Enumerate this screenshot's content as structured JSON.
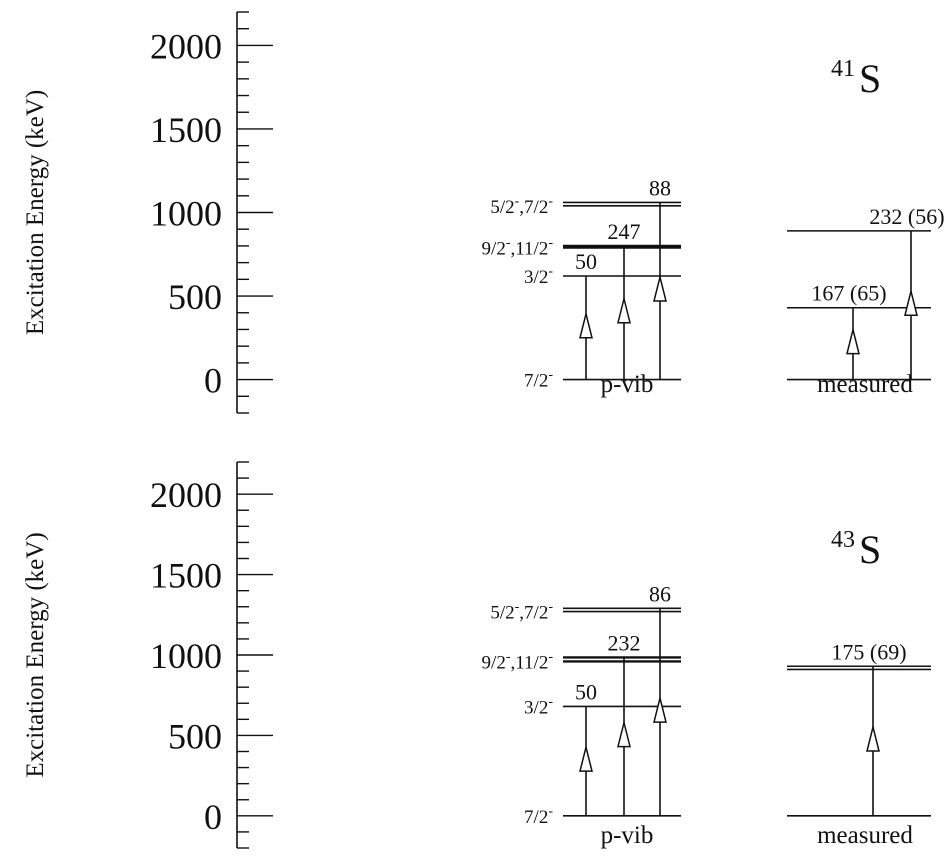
{
  "axis": {
    "ylabel": "Excitation Energy (keV)",
    "ticks": [
      0,
      500,
      1000,
      1500,
      2000
    ],
    "range": [
      -200,
      2200
    ]
  },
  "panels": [
    {
      "nucleus": {
        "mass": "41",
        "symbol": "S"
      },
      "pvib": {
        "label": "p-vib",
        "levels": [
          {
            "spin": "7/2-",
            "energy": 0
          },
          {
            "spin": "3/2-",
            "energy": 620
          },
          {
            "spin": "9/2-,11/2-",
            "energy": 790
          },
          {
            "spin": "",
            "energy": 800
          },
          {
            "spin": "5/2-,7/2-",
            "energy": 1040
          },
          {
            "spin": "",
            "energy": 1060
          }
        ],
        "transitions": [
          {
            "to": 620,
            "label": "50"
          },
          {
            "to": 800,
            "label": "247"
          },
          {
            "to": 1060,
            "label": "88"
          }
        ]
      },
      "measured": {
        "label": "measured",
        "levels": [
          {
            "energy": 0
          },
          {
            "energy": 430
          },
          {
            "energy": 890
          }
        ],
        "transitions": [
          {
            "to": 430,
            "label": "167 (65)"
          },
          {
            "to": 890,
            "label": "232 (56)"
          }
        ]
      }
    },
    {
      "nucleus": {
        "mass": "43",
        "symbol": "S"
      },
      "pvib": {
        "label": "p-vib",
        "levels": [
          {
            "spin": "7/2-",
            "energy": 0
          },
          {
            "spin": "3/2-",
            "energy": 680
          },
          {
            "spin": "9/2-,11/2-",
            "energy": 960
          },
          {
            "spin": "",
            "energy": 985
          },
          {
            "spin": "5/2-,7/2-",
            "energy": 1270
          },
          {
            "spin": "",
            "energy": 1290
          }
        ],
        "transitions": [
          {
            "to": 680,
            "label": "50"
          },
          {
            "to": 985,
            "label": "232"
          },
          {
            "to": 1290,
            "label": "86"
          }
        ]
      },
      "measured": {
        "label": "measured",
        "levels": [
          {
            "energy": 0
          },
          {
            "energy": 910
          },
          {
            "energy": 930
          }
        ],
        "transitions": [
          {
            "to": 930,
            "label": "175 (69)"
          }
        ]
      }
    }
  ]
}
